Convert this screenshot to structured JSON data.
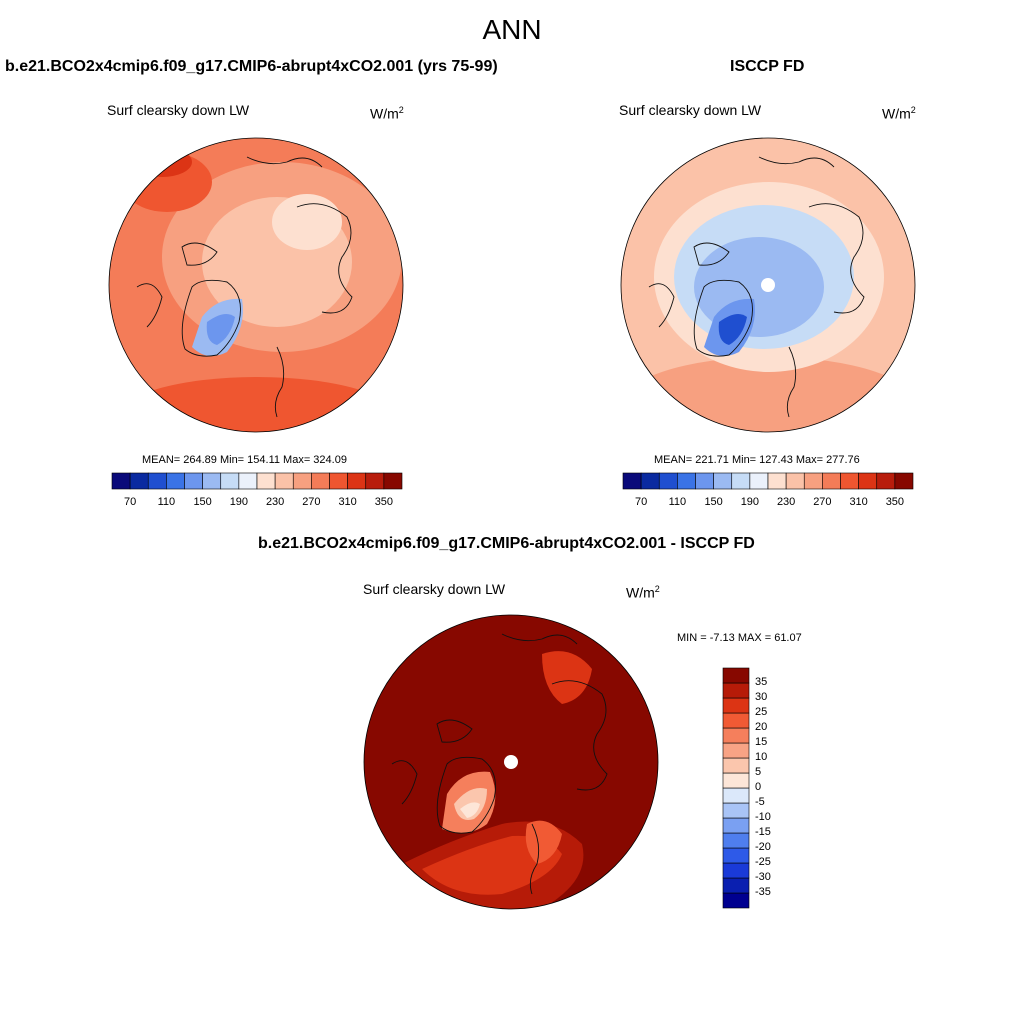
{
  "figure": {
    "title": "ANN"
  },
  "panels": {
    "model": {
      "title": "b.e21.BCO2x4cmip6.f09_g17.CMIP6-abrupt4xCO2.001 (yrs 75-99)",
      "variable": "Surf clearsky down LW",
      "unit": "W/m",
      "unit_sup": "2",
      "stats": "MEAN= 264.89  Min= 154.11  Max= 324.09"
    },
    "obs": {
      "title": "ISCCP FD",
      "variable": "Surf clearsky down LW",
      "unit": "W/m",
      "unit_sup": "2",
      "stats": "MEAN= 221.71  Min= 127.43  Max= 277.76"
    },
    "diff": {
      "title": "b.e21.BCO2x4cmip6.f09_g17.CMIP6-abrupt4xCO2.001 - ISCCP FD",
      "variable": "Surf clearsky down LW",
      "unit": "W/m",
      "unit_sup": "2",
      "stats": "MIN =  -7.13 MAX =  61.07"
    }
  },
  "colorbars": {
    "abs": {
      "colors": [
        "#0a0a7a",
        "#0a2aa0",
        "#1f4fd0",
        "#3a73e6",
        "#6c96ee",
        "#9bbaf2",
        "#c6dcf6",
        "#ebf1fb",
        "#fde0d0",
        "#fbc2a8",
        "#f7a080",
        "#f47c58",
        "#ef5630",
        "#dc3415",
        "#b81d0c",
        "#870800"
      ],
      "tick_labels": [
        "70",
        "110",
        "150",
        "190",
        "230",
        "270",
        "310",
        "350"
      ]
    },
    "diff": {
      "colors": [
        "#000090",
        "#0a1fb0",
        "#1a3ad8",
        "#2e5ae8",
        "#4f7eee",
        "#7aa0f2",
        "#a9c4f6",
        "#dbe8fa",
        "#fde6d8",
        "#fbc6ad",
        "#f8a385",
        "#f57f5c",
        "#f15a34",
        "#dc3414",
        "#b61b08",
        "#870800"
      ],
      "tick_labels": [
        "35",
        "30",
        "25",
        "20",
        "15",
        "10",
        "5",
        "0",
        "-5",
        "-10",
        "-15",
        "-20",
        "-25",
        "-30",
        "-35"
      ]
    }
  },
  "map_colors": {
    "land_outline": "#111111",
    "missing": "#ffffff"
  }
}
